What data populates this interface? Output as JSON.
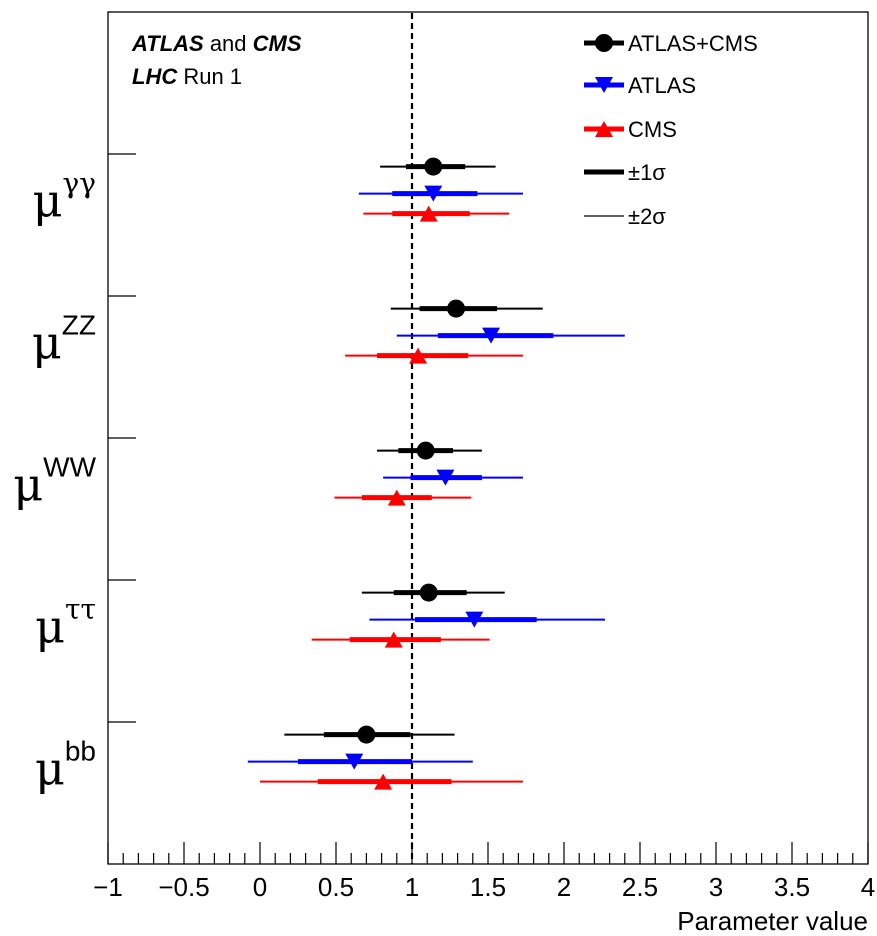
{
  "chart_data": {
    "type": "scatter",
    "title": "",
    "xlabel": "Parameter value",
    "ylabel": "",
    "xlim": [
      -1,
      4
    ],
    "x_ticks": [
      "−1",
      "−0.5",
      "0",
      "0.5",
      "1",
      "1.5",
      "2",
      "2.5",
      "3",
      "3.5",
      "4"
    ],
    "x_tick_values": [
      -1,
      -0.5,
      0,
      0.5,
      1,
      1.5,
      2,
      2.5,
      3,
      3.5,
      4
    ],
    "reference_line": 1,
    "annotation": {
      "line1": [
        {
          "text": "ATLAS",
          "style": "bold-italic"
        },
        {
          "text": " and ",
          "style": "normal"
        },
        {
          "text": "CMS",
          "style": "bold-italic"
        }
      ],
      "line2": [
        {
          "text": "LHC",
          "style": "bold-italic"
        },
        {
          "text": " Run 1",
          "style": "normal"
        }
      ]
    },
    "legend": {
      "placement": "top-right",
      "entries": [
        {
          "label": "ATLAS+CMS",
          "marker": "circle",
          "color": "#000000"
        },
        {
          "label": "ATLAS",
          "marker": "triangle-down",
          "color": "#0000ff"
        },
        {
          "label": "CMS",
          "marker": "triangle-up",
          "color": "#ff0000"
        },
        {
          "label": "±1σ",
          "marker": "thick-line",
          "color": "#000000"
        },
        {
          "label": "±2σ",
          "marker": "thin-line",
          "color": "#000000"
        }
      ]
    },
    "categories": [
      {
        "base": "μ",
        "sup": "γγ"
      },
      {
        "base": "μ",
        "sup": "ZZ"
      },
      {
        "base": "μ",
        "sup": "WW"
      },
      {
        "base": "μ",
        "sup": "ττ"
      },
      {
        "base": "μ",
        "sup": "bb"
      }
    ],
    "series": [
      {
        "name": "ATLAS+CMS",
        "color": "#000000",
        "marker": "circle",
        "values": [
          1.14,
          1.29,
          1.09,
          1.11,
          0.7
        ],
        "one_sigma": [
          [
            0.96,
            1.35
          ],
          [
            1.05,
            1.56
          ],
          [
            0.91,
            1.27
          ],
          [
            0.88,
            1.36
          ],
          [
            0.42,
            0.99
          ]
        ],
        "two_sigma": [
          [
            0.79,
            1.55
          ],
          [
            0.86,
            1.86
          ],
          [
            0.77,
            1.46
          ],
          [
            0.67,
            1.61
          ],
          [
            0.16,
            1.28
          ]
        ]
      },
      {
        "name": "ATLAS",
        "color": "#0000ff",
        "marker": "triangle-down",
        "values": [
          1.14,
          1.52,
          1.22,
          1.41,
          0.62
        ],
        "one_sigma": [
          [
            0.87,
            1.43
          ],
          [
            1.17,
            1.93
          ],
          [
            0.99,
            1.46
          ],
          [
            1.02,
            1.82
          ],
          [
            0.25,
            1.0
          ]
        ],
        "two_sigma": [
          [
            0.65,
            1.73
          ],
          [
            0.9,
            2.4
          ],
          [
            0.81,
            1.73
          ],
          [
            0.72,
            2.27
          ],
          [
            -0.08,
            1.4
          ]
        ]
      },
      {
        "name": "CMS",
        "color": "#ff0000",
        "marker": "triangle-up",
        "values": [
          1.11,
          1.04,
          0.9,
          0.88,
          0.81
        ],
        "one_sigma": [
          [
            0.87,
            1.38
          ],
          [
            0.77,
            1.37
          ],
          [
            0.67,
            1.13
          ],
          [
            0.59,
            1.19
          ],
          [
            0.38,
            1.26
          ]
        ],
        "two_sigma": [
          [
            0.68,
            1.64
          ],
          [
            0.56,
            1.73
          ],
          [
            0.49,
            1.39
          ],
          [
            0.34,
            1.51
          ],
          [
            0.0,
            1.73
          ]
        ]
      }
    ]
  }
}
